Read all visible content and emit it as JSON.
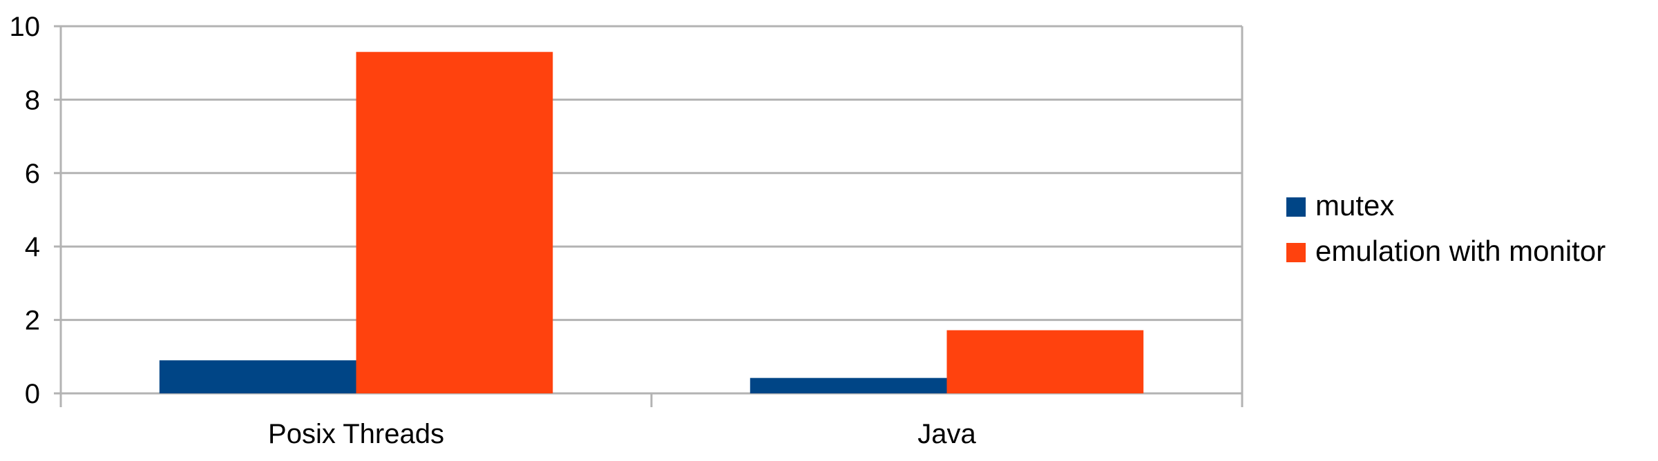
{
  "chart_data": {
    "type": "bar",
    "title": "",
    "xlabel": "",
    "ylabel": "",
    "categories": [
      "Posix Threads",
      "Java"
    ],
    "series": [
      {
        "name": "mutex",
        "values": [
          0.9,
          0.42
        ],
        "color": "#004586"
      },
      {
        "name": "emulation with monitor",
        "values": [
          9.3,
          1.72
        ],
        "color": "#ff420e"
      }
    ],
    "ylim": [
      0,
      10
    ],
    "yticks": [
      "0",
      "2",
      "4",
      "6",
      "8",
      "10"
    ],
    "grid": true,
    "legend_position": "right",
    "grid_color": "#b3b3b3"
  }
}
